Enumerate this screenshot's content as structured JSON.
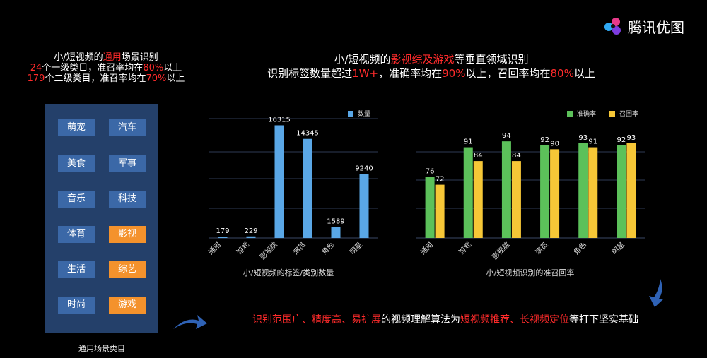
{
  "logo": {
    "text": "腾讯优图"
  },
  "left_intro": {
    "line1": {
      "before": "小/短视频的",
      "highlight": "通用",
      "after": "场景识别"
    },
    "line2": {
      "num": "24",
      "mid": "个一级类目，准召率均在",
      "pct": "80%",
      "after": "以上"
    },
    "line3": {
      "num": "179",
      "mid": "个二级类目，准召率均在",
      "pct": "70%",
      "after": "以上"
    }
  },
  "categories_panel": {
    "rows": [
      [
        "萌宠",
        "汽车"
      ],
      [
        "美食",
        "军事"
      ],
      [
        "音乐",
        "科技"
      ],
      [
        "体育",
        "影视"
      ],
      [
        "生活",
        "综艺"
      ],
      [
        "时尚",
        "游戏"
      ]
    ],
    "highlighted": [
      "影视",
      "综艺",
      "游戏"
    ],
    "caption": "通用场景类目",
    "colors": {
      "panel": "#24406a",
      "item": "#3b68a7",
      "highlight": "#f4922c"
    }
  },
  "center_header": {
    "line1": {
      "before": "小/短视频的",
      "highlight": "影视综及游戏",
      "after": "等垂直领域识别"
    },
    "line2": {
      "before": "识别标签数量超过",
      "h1": "1W+",
      "mid": "，准确率均在",
      "h2": "90%",
      "mid2": "以上，召回率均在",
      "h3": "80%",
      "after": "以上"
    }
  },
  "statement": {
    "h1": "识别范围广、精度高、易扩展",
    "mid": "的视频理解算法为",
    "h2": "短视频推荐、长视频定位",
    "after": "等打下坚实基础"
  },
  "chart_data": [
    {
      "type": "bar",
      "title": "小/短视频的标签/类别数量",
      "categories": [
        "通用",
        "游戏",
        "影视综",
        "演员",
        "角色",
        "明星"
      ],
      "series": [
        {
          "name": "数量",
          "values": [
            179,
            229,
            16315,
            14345,
            1589,
            9240
          ],
          "color": "#5aa7e6"
        }
      ],
      "ylim": [
        0,
        18000
      ],
      "grid": true,
      "legend": "top-right"
    },
    {
      "type": "bar",
      "title": "小/短视频识别的准召回率",
      "categories": [
        "通用",
        "游戏",
        "影视综",
        "演员",
        "角色",
        "明星"
      ],
      "series": [
        {
          "name": "准确率",
          "values": [
            76,
            91,
            94,
            92,
            93,
            92
          ],
          "color": "#5cc15a"
        },
        {
          "name": "召回率",
          "values": [
            72,
            84,
            84,
            90,
            91,
            93
          ],
          "color": "#f6c737"
        }
      ],
      "ylim": [
        45,
        98
      ],
      "grid": true,
      "legend": "top-right"
    }
  ]
}
